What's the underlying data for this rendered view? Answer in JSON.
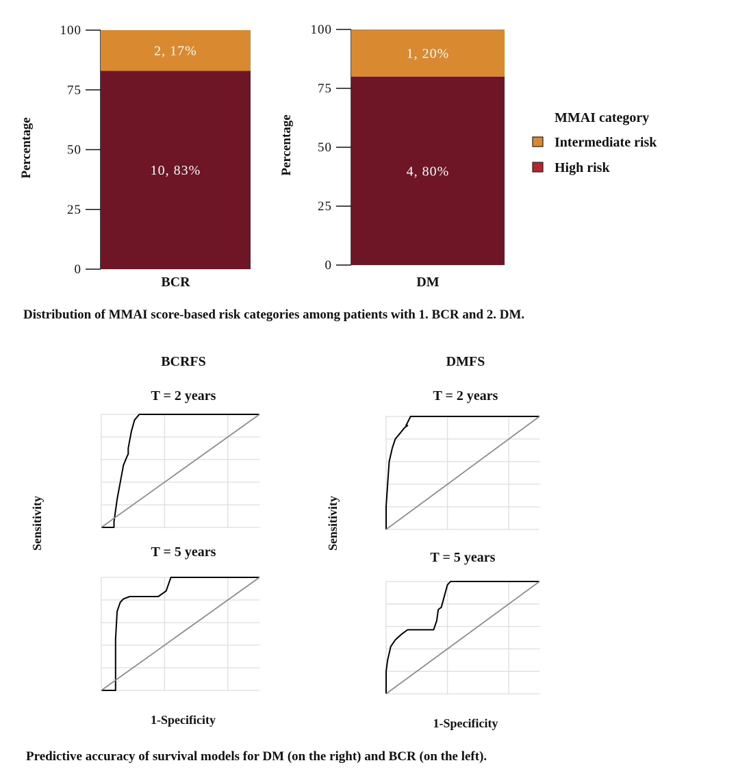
{
  "captions": {
    "top": "Distribution of  MMAI  score-based risk categories among patients with 1. BCR and 2. DM.",
    "bottom": "Predictive accuracy of survival models for DM (on the right) and BCR (on the left)."
  },
  "colors": {
    "intermediate": "#d9892f",
    "high": "#6e1626",
    "legend_high": "#b5262e",
    "roc": "#000000",
    "diagonal": "#8c8c8c",
    "grid": "#dddddd"
  },
  "chart_data": [
    {
      "type": "bar",
      "stacked": true,
      "categories": [
        "BCR"
      ],
      "ylabel": "Percentage",
      "ylim": [
        0,
        100
      ],
      "yticks": [
        "0",
        "25",
        "50",
        "75",
        "100"
      ],
      "series": [
        {
          "name": "High risk",
          "values": [
            83
          ],
          "labels": [
            "10, 83%"
          ]
        },
        {
          "name": "Intermediate risk",
          "values": [
            17
          ],
          "labels": [
            "2, 17%"
          ]
        }
      ]
    },
    {
      "type": "bar",
      "stacked": true,
      "categories": [
        "DM"
      ],
      "ylabel": "Percentage",
      "ylim": [
        0,
        100
      ],
      "yticks": [
        "0",
        "25",
        "50",
        "75",
        "100"
      ],
      "series": [
        {
          "name": "High risk",
          "values": [
            80
          ],
          "labels": [
            "4, 80%"
          ]
        },
        {
          "name": "Intermediate risk",
          "values": [
            20
          ],
          "labels": [
            "1, 20%"
          ]
        }
      ],
      "legend": {
        "title": "MMAI category",
        "position": "right",
        "entries": [
          "Intermediate risk",
          "High risk"
        ]
      }
    },
    {
      "type": "line",
      "group_title": "BCRFS",
      "title": "T = 2 years",
      "ylabel": "Sensitivity",
      "xlim": [
        0,
        1
      ],
      "ylim": [
        0,
        1
      ],
      "grid": true,
      "series": [
        {
          "x": [
            0,
            0.08,
            0.08,
            0.1,
            0.12,
            0.14,
            0.16,
            0.17,
            0.17,
            0.19,
            0.21,
            0.24,
            1.0
          ],
          "y": [
            0,
            0,
            0.05,
            0.25,
            0.4,
            0.55,
            0.62,
            0.65,
            0.7,
            0.85,
            0.95,
            1.0,
            1.0
          ]
        },
        {
          "x": [
            0,
            1
          ],
          "y": [
            0,
            1
          ],
          "reference": true
        }
      ]
    },
    {
      "type": "line",
      "group_title": "DMFS",
      "title": "T = 2 years",
      "ylabel": "Sensitivity",
      "xlim": [
        0,
        1
      ],
      "ylim": [
        0,
        1
      ],
      "grid": true,
      "series": [
        {
          "x": [
            0,
            0,
            0.01,
            0.02,
            0.04,
            0.06,
            0.09,
            0.12,
            0.14,
            0.13,
            0.16,
            1.0
          ],
          "y": [
            0,
            0.2,
            0.4,
            0.6,
            0.72,
            0.8,
            0.85,
            0.9,
            0.92,
            0.92,
            1.0,
            1.0
          ]
        },
        {
          "x": [
            0,
            1
          ],
          "y": [
            0,
            1
          ],
          "reference": true
        }
      ]
    },
    {
      "type": "line",
      "group_title": "BCRFS",
      "title": "T = 5 years",
      "xlabel": "1-Specificity",
      "xlim": [
        0,
        1
      ],
      "ylim": [
        0,
        1
      ],
      "grid": true,
      "series": [
        {
          "x": [
            0,
            0.09,
            0.09,
            0.1,
            0.12,
            0.14,
            0.18,
            0.36,
            0.39,
            0.41,
            0.44,
            1.0
          ],
          "y": [
            0,
            0,
            0.45,
            0.7,
            0.78,
            0.81,
            0.83,
            0.83,
            0.86,
            0.88,
            1.0,
            1.0
          ]
        },
        {
          "x": [
            0,
            1
          ],
          "y": [
            0,
            1
          ],
          "reference": true
        }
      ]
    },
    {
      "type": "line",
      "group_title": "DMFS",
      "title": "T = 5 years",
      "xlabel": "1-Specificity",
      "xlim": [
        0,
        1
      ],
      "ylim": [
        0,
        1
      ],
      "grid": true,
      "series": [
        {
          "x": [
            0,
            0,
            0.01,
            0.03,
            0.06,
            0.1,
            0.14,
            0.31,
            0.33,
            0.34,
            0.36,
            0.38,
            0.4,
            0.42,
            1.0
          ],
          "y": [
            0,
            0.2,
            0.3,
            0.42,
            0.48,
            0.53,
            0.57,
            0.57,
            0.65,
            0.75,
            0.77,
            0.87,
            0.97,
            1.0,
            1.0
          ]
        },
        {
          "x": [
            0,
            1
          ],
          "y": [
            0,
            1
          ],
          "reference": true
        }
      ]
    }
  ]
}
